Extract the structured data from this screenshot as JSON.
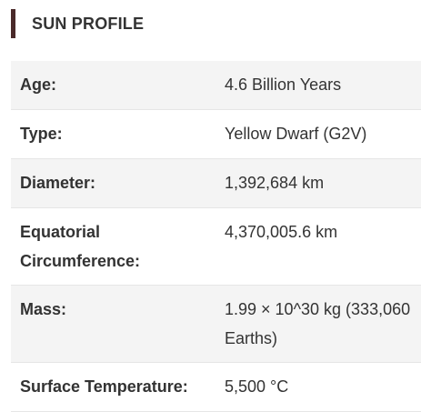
{
  "header": {
    "title": "SUN PROFILE"
  },
  "rows": [
    {
      "label": "Age:",
      "value": "4.6 Billion Years"
    },
    {
      "label": "Type:",
      "value": "Yellow Dwarf (G2V)"
    },
    {
      "label": "Diameter:",
      "value": "1,392,684 km"
    },
    {
      "label": "Equatorial Circumference:",
      "value": "4,370,005.6 km"
    },
    {
      "label": "Mass:",
      "value": "1.99 × 10^30 kg (333,060 Earths)"
    },
    {
      "label": "Surface Temperature:",
      "value": "5,500 °C"
    }
  ],
  "colors": {
    "accent_bar": "#4a2a2a",
    "row_stripe": "#f4f4f4",
    "text": "#333333"
  }
}
